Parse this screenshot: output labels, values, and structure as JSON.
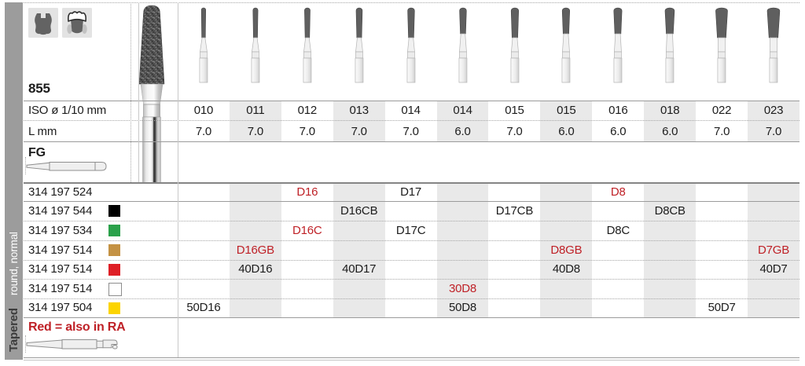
{
  "page_type": "dental diamond bur catalog table",
  "sidebar": {
    "category": "Tapered",
    "subcategory": "round, normal"
  },
  "header": {
    "figure": "855",
    "iso_row_label": "ISO ø 1/10 mm",
    "length_row_label": "L mm",
    "shank_type": "FG",
    "tooth_icons": [
      "cavity-prep-tooth-icon",
      "crown-tooth-icon"
    ]
  },
  "columns": [
    {
      "iso": "010",
      "l": "7.0"
    },
    {
      "iso": "011",
      "l": "7.0"
    },
    {
      "iso": "012",
      "l": "7.0"
    },
    {
      "iso": "013",
      "l": "7.0"
    },
    {
      "iso": "014",
      "l": "7.0"
    },
    {
      "iso": "014",
      "l": "6.0"
    },
    {
      "iso": "015",
      "l": "7.0"
    },
    {
      "iso": "015",
      "l": "6.0"
    },
    {
      "iso": "016",
      "l": "6.0"
    },
    {
      "iso": "018",
      "l": "6.0"
    },
    {
      "iso": "022",
      "l": "7.0"
    },
    {
      "iso": "023",
      "l": "7.0"
    }
  ],
  "products": [
    {
      "order_no": "314 197 524",
      "swatch": null,
      "items": [
        {
          "col": 2,
          "code": "D16",
          "red": true
        },
        {
          "col": 4,
          "code": "D17",
          "red": false
        },
        {
          "col": 8,
          "code": "D8",
          "red": true
        }
      ]
    },
    {
      "order_no": "314 197 544",
      "swatch": {
        "fill": "#000000"
      },
      "items": [
        {
          "col": 3,
          "code": "D16CB",
          "red": false
        },
        {
          "col": 6,
          "code": "D17CB",
          "red": false
        },
        {
          "col": 9,
          "code": "D8CB",
          "red": false
        }
      ]
    },
    {
      "order_no": "314 197 534",
      "swatch": {
        "fill": "#2ba14b"
      },
      "items": [
        {
          "col": 2,
          "code": "D16C",
          "red": true
        },
        {
          "col": 4,
          "code": "D17C",
          "red": false
        },
        {
          "col": 8,
          "code": "D8C",
          "red": false
        }
      ]
    },
    {
      "order_no": "314 197 514",
      "swatch": {
        "fill": "#c49244"
      },
      "items": [
        {
          "col": 1,
          "code": "D16GB",
          "red": true
        },
        {
          "col": 7,
          "code": "D8GB",
          "red": true
        },
        {
          "col": 11,
          "code": "D7GB",
          "red": true
        }
      ]
    },
    {
      "order_no": "314 197 514",
      "swatch": {
        "fill": "#de1f26"
      },
      "items": [
        {
          "col": 1,
          "code": "40D16",
          "red": false
        },
        {
          "col": 3,
          "code": "40D17",
          "red": false
        },
        {
          "col": 7,
          "code": "40D8",
          "red": false
        },
        {
          "col": 11,
          "code": "40D7",
          "red": false
        }
      ]
    },
    {
      "order_no": "314 197 514",
      "swatch": {
        "fill": "#ffffff",
        "border": "#8d8d8d"
      },
      "items": [
        {
          "col": 5,
          "code": "30D8",
          "red": true
        }
      ]
    },
    {
      "order_no": "314 197 504",
      "swatch": {
        "fill": "#fcd400"
      },
      "items": [
        {
          "col": 0,
          "code": "50D16",
          "red": false
        },
        {
          "col": 5,
          "code": "50D8",
          "red": false
        },
        {
          "col": 10,
          "code": "50D7",
          "red": false
        }
      ]
    }
  ],
  "legend": {
    "note": "Red = also in RA"
  },
  "colors": {
    "accent_red": "#bf2127",
    "column_shade": "#e9e9e9",
    "sidebar_bg": "#9c9c9c"
  }
}
